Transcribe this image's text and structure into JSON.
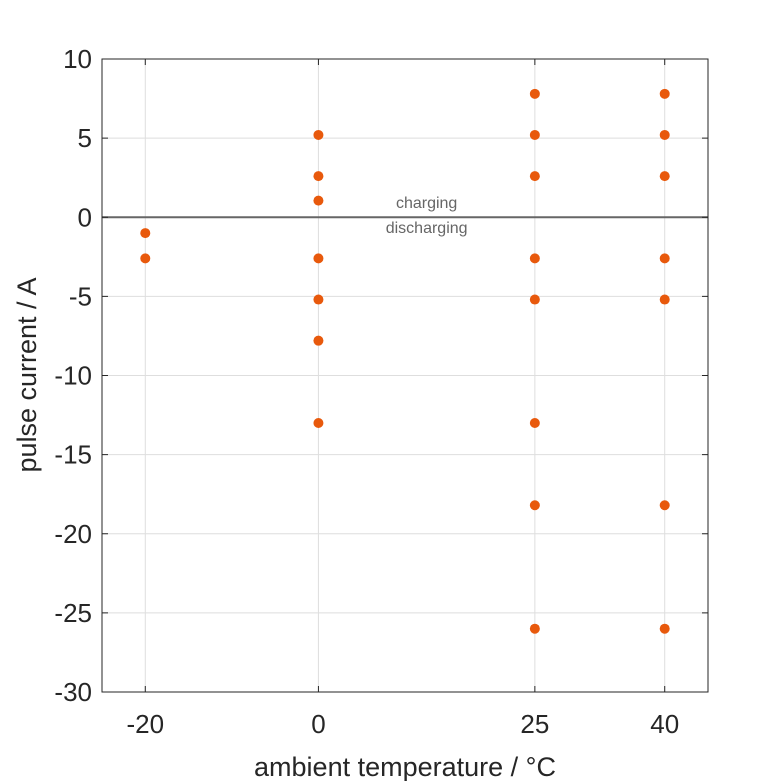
{
  "chart_data": {
    "type": "scatter",
    "xlabel": "ambient temperature / °C",
    "ylabel": "pulse current / A",
    "x_ticks": [
      -20,
      0,
      25,
      40
    ],
    "y_ticks": [
      10,
      5,
      0,
      -5,
      -10,
      -15,
      -20,
      -25,
      -30
    ],
    "xlim": [
      -25,
      45
    ],
    "ylim": [
      -30,
      10
    ],
    "grid": true,
    "marker_color": "#e8590c",
    "reference_line": {
      "y": 0,
      "color": "#666666"
    },
    "annotations": [
      {
        "text": "charging",
        "x": 12.5,
        "y": 0.6
      },
      {
        "text": "discharging",
        "x": 12.5,
        "y": -1.0
      }
    ],
    "points": [
      {
        "x": -20,
        "y": -1.0
      },
      {
        "x": -20,
        "y": -2.6
      },
      {
        "x": 0,
        "y": 5.2
      },
      {
        "x": 0,
        "y": 2.6
      },
      {
        "x": 0,
        "y": 1.05
      },
      {
        "x": 0,
        "y": -2.6
      },
      {
        "x": 0,
        "y": -5.2
      },
      {
        "x": 0,
        "y": -7.8
      },
      {
        "x": 0,
        "y": -13.0
      },
      {
        "x": 25,
        "y": 7.8
      },
      {
        "x": 25,
        "y": 5.2
      },
      {
        "x": 25,
        "y": 2.6
      },
      {
        "x": 25,
        "y": -2.6
      },
      {
        "x": 25,
        "y": -5.2
      },
      {
        "x": 25,
        "y": -13.0
      },
      {
        "x": 25,
        "y": -18.2
      },
      {
        "x": 25,
        "y": -26.0
      },
      {
        "x": 40,
        "y": 7.8
      },
      {
        "x": 40,
        "y": 5.2
      },
      {
        "x": 40,
        "y": 2.6
      },
      {
        "x": 40,
        "y": -2.6
      },
      {
        "x": 40,
        "y": -5.2
      },
      {
        "x": 40,
        "y": -18.2
      },
      {
        "x": 40,
        "y": -26.0
      }
    ]
  }
}
